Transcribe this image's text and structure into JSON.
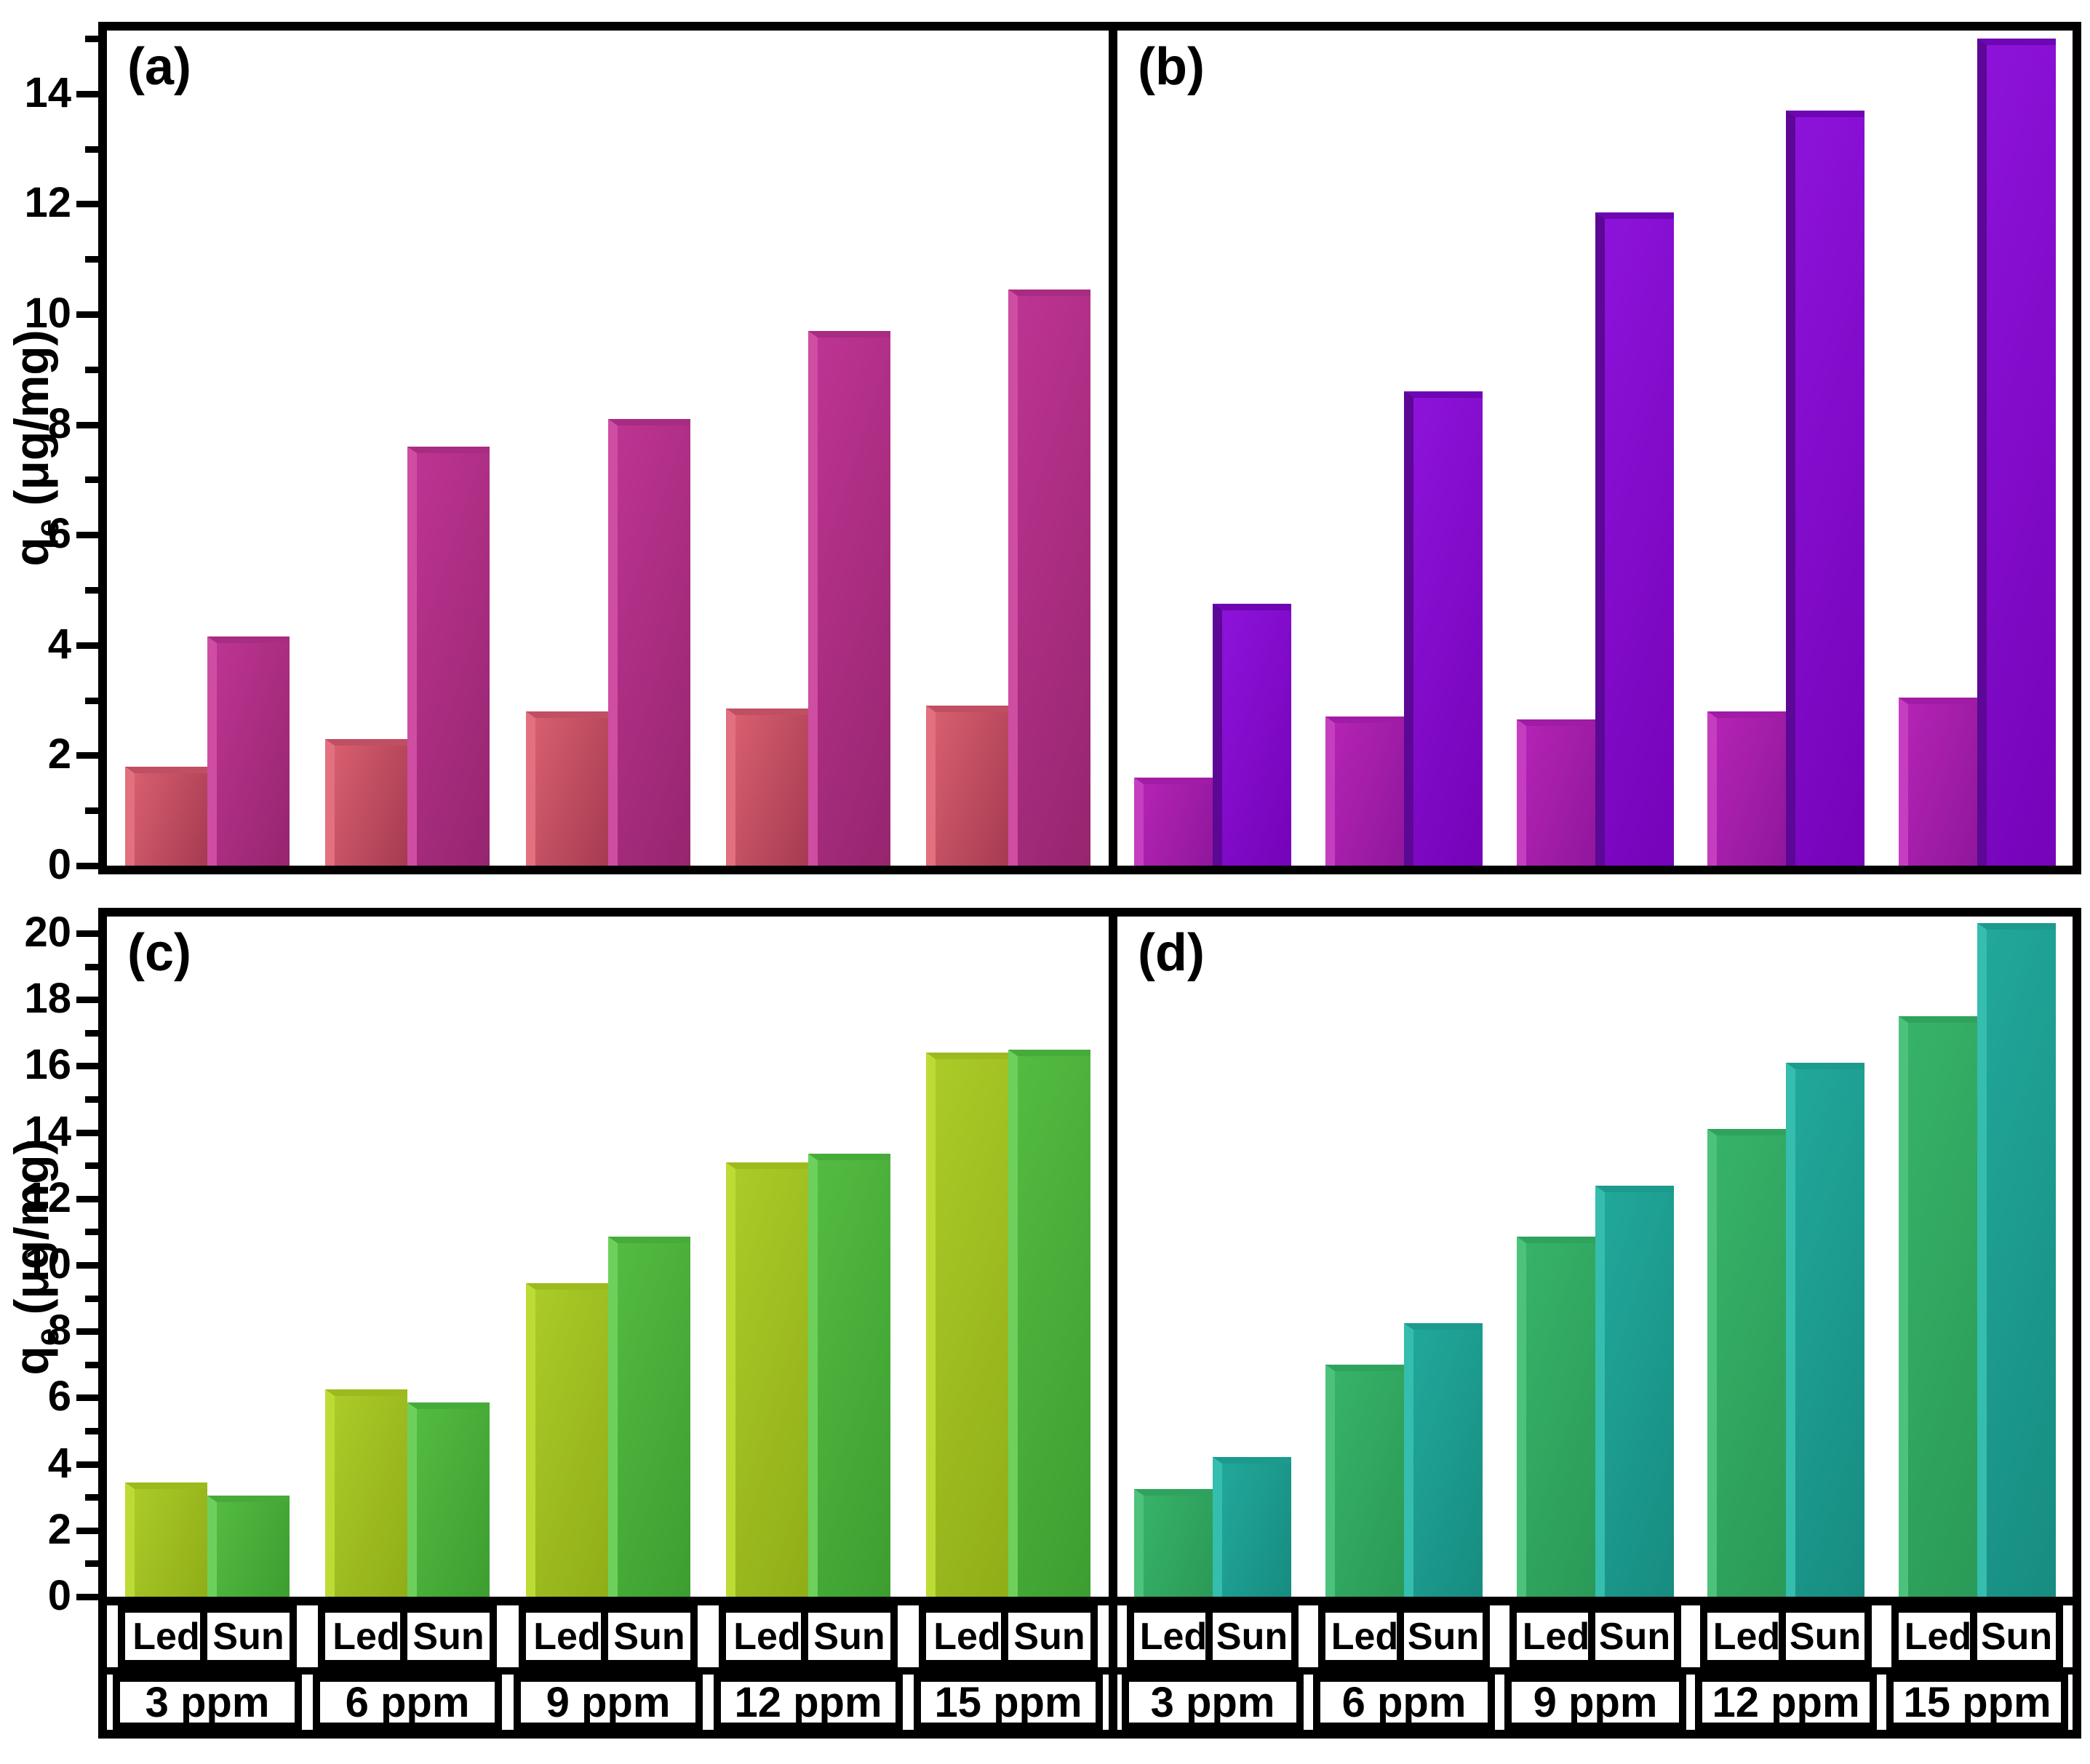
{
  "y_axis": {
    "label_base": "q",
    "label_subscript": "e",
    "label_rest": " (μg/mg)"
  },
  "x_sublabels": [
    "Led",
    "Sun"
  ],
  "x_groups": [
    "3 ppm",
    "6 ppm",
    "9 ppm",
    "12 ppm",
    "15 ppm"
  ],
  "panel_letters": [
    "(a)",
    "(b)",
    "(c)",
    "(d)"
  ],
  "axes": {
    "top_row": {
      "major_ticks": [
        0,
        2,
        4,
        6,
        8,
        10,
        12,
        14
      ],
      "minor_ticks": [
        1,
        3,
        5,
        7,
        9,
        11,
        13,
        15
      ],
      "ylim": [
        0,
        15.15
      ]
    },
    "bottom_row": {
      "major_ticks": [
        0,
        2,
        4,
        6,
        8,
        10,
        12,
        14,
        16,
        18,
        20
      ],
      "minor_ticks": [
        1,
        3,
        5,
        7,
        9,
        11,
        13,
        15,
        17,
        19
      ],
      "ylim": [
        0,
        20.5
      ]
    }
  },
  "colors": {
    "a_led": {
      "edge": "#e2707e",
      "light": "#d75f6e",
      "dark": "#a63a52",
      "cap": "#c04f63"
    },
    "a_sun": {
      "edge": "#cf4da2",
      "light": "#bd3492",
      "dark": "#96256f",
      "cap": "#a82c82"
    },
    "b_led": {
      "edge": "#c63ec0",
      "light": "#b423b4",
      "dark": "#8f179c",
      "cap": "#a01ba6"
    },
    "b_sun": {
      "edge": "#5c0795",
      "light": "#8d13da",
      "dark": "#7503b8",
      "cap": "#6e06b3"
    },
    "c_led": {
      "edge": "#bcdc35",
      "light": "#aacb28",
      "dark": "#90ad18",
      "cap": "#9cba1e"
    },
    "c_sun": {
      "edge": "#6ed05c",
      "light": "#54bb41",
      "dark": "#3c9e30",
      "cap": "#46ab38"
    },
    "d_led": {
      "edge": "#4cc27c",
      "light": "#37b269",
      "dark": "#2a9a57",
      "cap": "#2fa35e"
    },
    "d_sun": {
      "edge": "#35bdae",
      "light": "#21a89a",
      "dark": "#178c80",
      "cap": "#1b9a8d"
    }
  },
  "chart_data": [
    {
      "type": "bar",
      "panel": "(a)",
      "categories": [
        "3 ppm",
        "6 ppm",
        "9 ppm",
        "12 ppm",
        "15 ppm"
      ],
      "series": [
        {
          "name": "Led",
          "values": [
            1.8,
            2.3,
            2.8,
            2.85,
            2.9
          ]
        },
        {
          "name": "Sun",
          "values": [
            4.15,
            7.6,
            8.1,
            9.7,
            10.45
          ]
        }
      ],
      "title": "",
      "xlabel": "",
      "ylabel": "qe (μg/mg)",
      "ylim": [
        0,
        15.15
      ],
      "ytick_step": 2,
      "grid": false,
      "legend": "none"
    },
    {
      "type": "bar",
      "panel": "(b)",
      "categories": [
        "3 ppm",
        "6 ppm",
        "9 ppm",
        "12 ppm",
        "15 ppm"
      ],
      "series": [
        {
          "name": "Led",
          "values": [
            1.6,
            2.7,
            2.65,
            2.8,
            3.05
          ]
        },
        {
          "name": "Sun",
          "values": [
            4.75,
            8.6,
            11.85,
            13.7,
            15.0
          ]
        }
      ],
      "title": "",
      "xlabel": "",
      "ylabel": "qe (μg/mg)",
      "ylim": [
        0,
        15.15
      ],
      "ytick_step": 2,
      "grid": false,
      "legend": "none"
    },
    {
      "type": "bar",
      "panel": "(c)",
      "categories": [
        "3 ppm",
        "6 ppm",
        "9 ppm",
        "12 ppm",
        "15 ppm"
      ],
      "series": [
        {
          "name": "Led",
          "values": [
            3.45,
            6.25,
            9.45,
            13.1,
            16.4
          ]
        },
        {
          "name": "Sun",
          "values": [
            3.05,
            5.85,
            10.85,
            13.35,
            16.5
          ]
        }
      ],
      "title": "",
      "xlabel": "",
      "ylabel": "qe (μg/mg)",
      "ylim": [
        0,
        20.5
      ],
      "ytick_step": 2,
      "grid": false,
      "legend": "none"
    },
    {
      "type": "bar",
      "panel": "(d)",
      "categories": [
        "3 ppm",
        "6 ppm",
        "9 ppm",
        "12 ppm",
        "15 ppm"
      ],
      "series": [
        {
          "name": "Led",
          "values": [
            3.25,
            7.0,
            10.85,
            14.1,
            17.5
          ]
        },
        {
          "name": "Sun",
          "values": [
            4.2,
            8.25,
            12.4,
            16.1,
            20.3
          ]
        }
      ],
      "title": "",
      "xlabel": "",
      "ylabel": "qe (μg/mg)",
      "ylim": [
        0,
        20.5
      ],
      "ytick_step": 2,
      "grid": false,
      "legend": "none"
    }
  ]
}
